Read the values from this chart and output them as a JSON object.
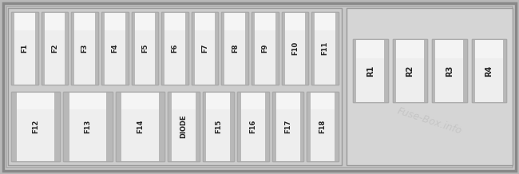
{
  "bg_outer": "#b8b8b8",
  "bg_panel": "#c8c8c8",
  "bg_left": "#cccccc",
  "bg_right": "#d5d5d5",
  "fuse_fill_light": "#ececec",
  "fuse_fill_mid": "#d8d8d8",
  "fuse_border": "#aaaaaa",
  "fuse_text_color": "#222222",
  "relay_fill_light": "#e8e8e8",
  "relay_fill_mid": "#cecece",
  "watermark_color": "#c0c0c0",
  "watermark_text": "Fuse-Box.info",
  "top_row": [
    "F1",
    "F2",
    "F3",
    "F4",
    "F5",
    "F6",
    "F7",
    "F8",
    "F9",
    "F10",
    "F11"
  ],
  "bottom_row_labels": [
    "F12",
    "F13",
    "F14",
    "DIODE",
    "F15",
    "F16",
    "F17",
    "F18"
  ],
  "bottom_row_wide": [
    true,
    true,
    true,
    false,
    false,
    false,
    false,
    false
  ],
  "relay_row": [
    "R1",
    "R2",
    "R3",
    "R4"
  ]
}
